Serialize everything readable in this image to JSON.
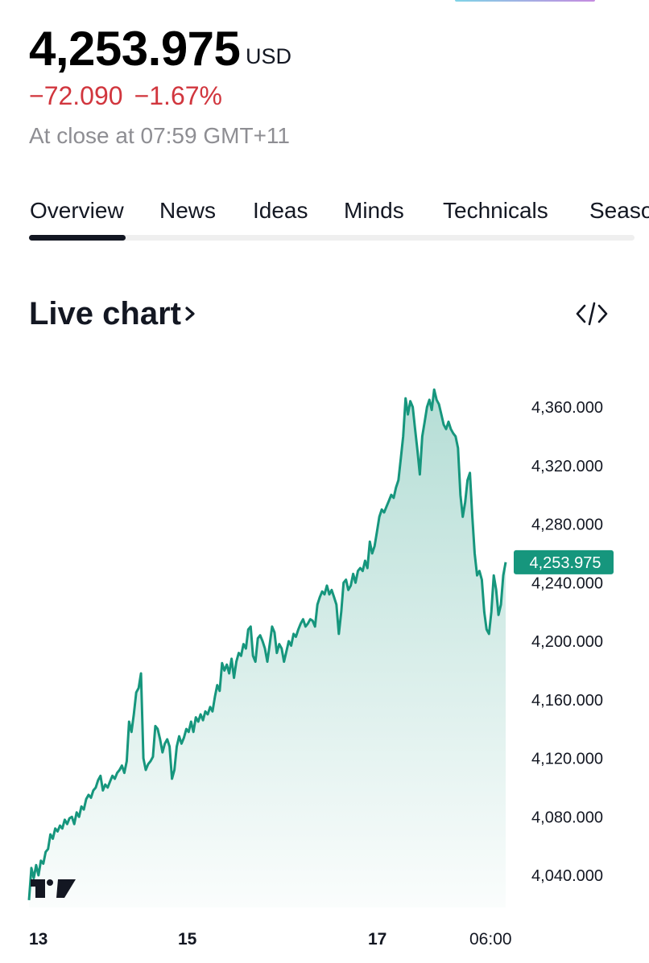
{
  "quote": {
    "price": "4,253.975",
    "currency": "USD",
    "change": "−72.090",
    "change_percent": "−1.67%",
    "status": "At close at 07:59 GMT+11",
    "change_color": "#d1363e"
  },
  "tabs": [
    {
      "label": "Overview",
      "active": true
    },
    {
      "label": "News",
      "active": false
    },
    {
      "label": "Ideas",
      "active": false
    },
    {
      "label": "Minds",
      "active": false
    },
    {
      "label": "Technicals",
      "active": false
    },
    {
      "label": "Seasonals",
      "active": false
    }
  ],
  "section": {
    "title": "Live chart",
    "chevron": "chevron-right-icon",
    "embed_icon": "code-embed-icon"
  },
  "chart_data": {
    "type": "area",
    "line_color": "#16967d",
    "fill_color": "#bfe4da",
    "ylim": [
      4020,
      4385
    ],
    "y_ticks": [
      {
        "value": 4360,
        "label": "4,360.000"
      },
      {
        "value": 4320,
        "label": "4,320.000"
      },
      {
        "value": 4280,
        "label": "4,280.000"
      },
      {
        "value": 4240,
        "label": "4,240.000"
      },
      {
        "value": 4200,
        "label": "4,200.000"
      },
      {
        "value": 4160,
        "label": "4,160.000"
      },
      {
        "value": 4120,
        "label": "4,120.000"
      },
      {
        "value": 4080,
        "label": "4,080.000"
      },
      {
        "value": 4040,
        "label": "4,040.000"
      }
    ],
    "x_ticks": [
      {
        "label": "13",
        "bold": true
      },
      {
        "label": "15",
        "bold": true
      },
      {
        "label": "17",
        "bold": true
      },
      {
        "label": "06:00",
        "bold": false
      }
    ],
    "last_price_label": "4,253.975",
    "last_price_value": 4253.975,
    "series": [
      {
        "values": [
          4023,
          4045,
          4038,
          4047,
          4040,
          4050,
          4048,
          4056,
          4058,
          4068,
          4065,
          4072,
          4070,
          4074,
          4072,
          4078,
          4075,
          4079,
          4080,
          4075,
          4083,
          4080,
          4087,
          4085,
          4092,
          4095,
          4093,
          4098,
          4100,
          4105,
          4108,
          4098,
          4102,
          4100,
          4104,
          4108,
          4106,
          4110,
          4112,
          4115,
          4110,
          4118,
          4145,
          4138,
          4150,
          4165,
          4168,
          4178,
          4120,
          4112,
          4116,
          4118,
          4121,
          4142,
          4140,
          4133,
          4124,
          4130,
          4133,
          4128,
          4106,
          4112,
          4128,
          4135,
          4130,
          4134,
          4140,
          4138,
          4145,
          4138,
          4148,
          4145,
          4150,
          4146,
          4152,
          4150,
          4155,
          4152,
          4162,
          4170,
          4166,
          4185,
          4180,
          4184,
          4178,
          4188,
          4175,
          4186,
          4192,
          4190,
          4198,
          4195,
          4208,
          4210,
          4190,
          4186,
          4202,
          4204,
          4200,
          4195,
          4186,
          4198,
          4210,
          4206,
          4192,
          4198,
          4195,
          4186,
          4193,
          4200,
          4197,
          4205,
          4203,
          4208,
          4212,
          4215,
          4210,
          4212,
          4215,
          4214,
          4210,
          4225,
          4230,
          4234,
          4232,
          4238,
          4232,
          4235,
          4230,
          4225,
          4205,
          4220,
          4240,
          4242,
          4235,
          4238,
          4246,
          4240,
          4248,
          4250,
          4248,
          4255,
          4250,
          4268,
          4260,
          4265,
          4275,
          4285,
          4290,
          4288,
          4292,
          4296,
          4300,
          4298,
          4305,
          4310,
          4325,
          4340,
          4366,
          4355,
          4364,
          4360,
          4345,
          4330,
          4314,
          4340,
          4350,
          4360,
          4365,
          4358,
          4372,
          4365,
          4362,
          4355,
          4348,
          4345,
          4350,
          4345,
          4342,
          4340,
          4332,
          4300,
          4285,
          4295,
          4310,
          4315,
          4285,
          4260,
          4245,
          4248,
          4242,
          4220,
          4208,
          4205,
          4220,
          4245,
          4235,
          4218,
          4225,
          4245,
          4253.975
        ]
      }
    ]
  },
  "watermark": {
    "name": "tradingview-logo-icon",
    "text": "TV"
  }
}
